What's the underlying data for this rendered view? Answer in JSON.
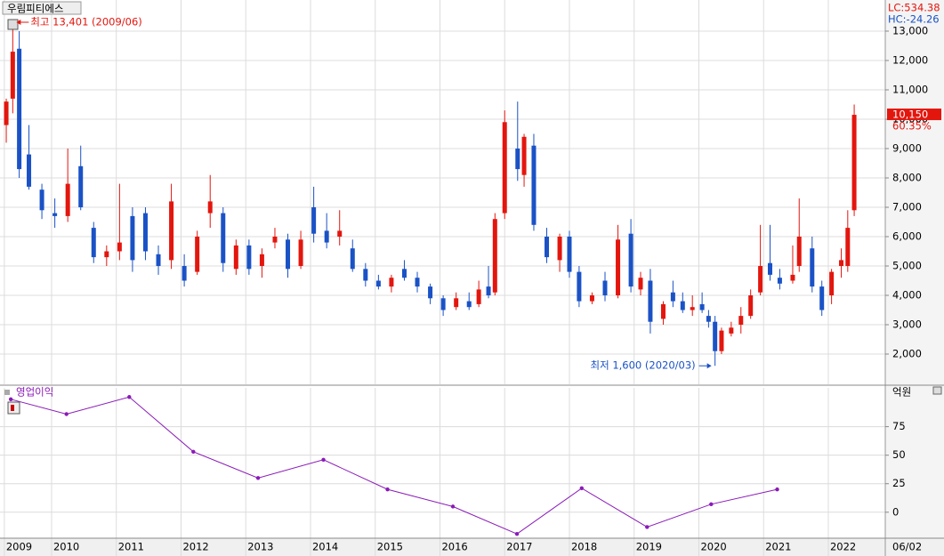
{
  "chart_data": [
    {
      "type": "candlestick",
      "title": "우림피티에스",
      "lc_label": "LC:534.38",
      "hc_label": "HC:-24.26",
      "annotations": [
        {
          "text": "최고 13,401 (2009/06)"
        },
        {
          "text": "최저 1,600 (2020/03)"
        }
      ],
      "current_price": {
        "value": 10150,
        "label": "10,150"
      },
      "change": {
        "value": 60.35,
        "label": "60.35%"
      },
      "up_color": "#e3160e",
      "down_color": "#1a52c6",
      "grid": true,
      "xlim": [
        2009.203,
        2022.88
      ],
      "ylim": [
        970,
        14060
      ],
      "yticks": [
        {
          "value": 2000,
          "label": "2,000"
        },
        {
          "value": 3000,
          "label": "3,000"
        },
        {
          "value": 4000,
          "label": "4,000"
        },
        {
          "value": 5000,
          "label": "5,000"
        },
        {
          "value": 6000,
          "label": "6,000"
        },
        {
          "value": 7000,
          "label": "7,000"
        },
        {
          "value": 8000,
          "label": "8,000"
        },
        {
          "value": 9000,
          "label": "9,000"
        },
        {
          "value": 10000,
          "label": "10,000"
        },
        {
          "value": 11000,
          "label": "11,000"
        },
        {
          "value": 12000,
          "label": "12,000"
        },
        {
          "value": 13000,
          "label": "13,000"
        }
      ],
      "x": [
        2009.3,
        2009.4,
        2009.5,
        2009.65,
        2009.85,
        2010.05,
        2010.25,
        2010.45,
        2010.65,
        2010.85,
        2011.05,
        2011.25,
        2011.45,
        2011.65,
        2011.85,
        2012.05,
        2012.25,
        2012.45,
        2012.65,
        2012.85,
        2013.05,
        2013.25,
        2013.45,
        2013.65,
        2013.85,
        2014.05,
        2014.25,
        2014.45,
        2014.65,
        2014.85,
        2015.05,
        2015.25,
        2015.45,
        2015.65,
        2015.85,
        2016.05,
        2016.25,
        2016.45,
        2016.6,
        2016.75,
        2016.85,
        2017.0,
        2017.2,
        2017.3,
        2017.45,
        2017.65,
        2017.85,
        2018.0,
        2018.15,
        2018.35,
        2018.55,
        2018.75,
        2018.95,
        2019.1,
        2019.25,
        2019.45,
        2019.6,
        2019.75,
        2019.9,
        2020.05,
        2020.15,
        2020.25,
        2020.35,
        2020.5,
        2020.65,
        2020.8,
        2020.95,
        2021.1,
        2021.25,
        2021.45,
        2021.55,
        2021.75,
        2021.9,
        2022.05,
        2022.2,
        2022.3,
        2022.4
      ],
      "open": [
        9800,
        10700,
        12400,
        8800,
        7600,
        6800,
        6700,
        8400,
        6300,
        5300,
        5500,
        6700,
        6800,
        5400,
        5200,
        5000,
        4800,
        6800,
        6800,
        4900,
        5700,
        5000,
        5800,
        5900,
        5000,
        7000,
        6200,
        6000,
        5600,
        4900,
        4500,
        4300,
        4900,
        4600,
        4300,
        3900,
        3600,
        3800,
        3700,
        4300,
        4100,
        6800,
        9000,
        8100,
        9100,
        6000,
        5200,
        6000,
        4800,
        3800,
        4500,
        4000,
        6100,
        4200,
        4500,
        3200,
        4100,
        3800,
        3500,
        3700,
        3300,
        3100,
        2100,
        2700,
        3000,
        3300,
        4100,
        5100,
        4600,
        4500,
        5000,
        5600,
        4300,
        4000,
        5000,
        5000,
        6900
      ],
      "high": [
        10700,
        13401,
        13000,
        9800,
        7800,
        7300,
        9000,
        9100,
        6500,
        5700,
        7800,
        7000,
        7000,
        5700,
        7800,
        5400,
        6200,
        8100,
        7000,
        5900,
        5900,
        5600,
        6300,
        6100,
        6200,
        7700,
        6800,
        6900,
        5900,
        5100,
        4700,
        4700,
        5200,
        4800,
        4400,
        4000,
        4100,
        4100,
        4500,
        5000,
        6800,
        10300,
        10600,
        9500,
        9500,
        6300,
        6100,
        6200,
        5000,
        4100,
        4800,
        6400,
        6600,
        4800,
        4900,
        3800,
        4500,
        4100,
        4000,
        4100,
        3500,
        3300,
        2900,
        3100,
        3600,
        4200,
        6400,
        6400,
        4900,
        5700,
        7300,
        6000,
        4500,
        4900,
        5600,
        6900,
        10500
      ],
      "low": [
        9200,
        10200,
        8000,
        7600,
        6600,
        6300,
        6500,
        6900,
        5100,
        5000,
        5200,
        4800,
        5200,
        4700,
        4900,
        4300,
        4700,
        6300,
        4800,
        4700,
        4700,
        4600,
        5600,
        4600,
        4900,
        5800,
        5600,
        5700,
        4800,
        4300,
        4200,
        4100,
        4500,
        4100,
        3700,
        3300,
        3500,
        3500,
        3600,
        3900,
        4000,
        6600,
        7900,
        7700,
        6200,
        5100,
        4800,
        4600,
        3600,
        3700,
        3800,
        3900,
        4100,
        4000,
        2700,
        3000,
        3600,
        3400,
        3300,
        3400,
        2900,
        1600,
        2000,
        2600,
        2700,
        3200,
        4000,
        4500,
        4200,
        4400,
        4800,
        4100,
        3300,
        3700,
        4600,
        4800,
        6700
      ],
      "close": [
        10600,
        12300,
        8300,
        7700,
        6900,
        6700,
        7800,
        7000,
        5300,
        5500,
        5800,
        5200,
        5500,
        5000,
        7200,
        4500,
        6000,
        7200,
        5100,
        5700,
        4900,
        5400,
        6000,
        4900,
        5900,
        6100,
        5800,
        6200,
        4900,
        4500,
        4300,
        4600,
        4600,
        4300,
        3900,
        3500,
        3900,
        3600,
        4200,
        4000,
        6600,
        9900,
        8300,
        9400,
        6400,
        5300,
        6000,
        4800,
        3800,
        4000,
        4000,
        5900,
        4300,
        4600,
        3100,
        3700,
        3800,
        3500,
        3600,
        3500,
        3100,
        2100,
        2800,
        2900,
        3300,
        4000,
        5000,
        4700,
        4400,
        4700,
        6000,
        4300,
        3500,
        4800,
        5200,
        6300,
        10150
      ]
    },
    {
      "type": "line",
      "title": "영업이익",
      "unit": "억원",
      "color": "#8a1ab8",
      "date_label": "06/02",
      "grid": true,
      "xlim": [
        2009.203,
        2022.88
      ],
      "ylim": [
        -22,
        109
      ],
      "yticks": [
        0,
        25,
        50,
        75
      ],
      "xticks": [
        {
          "value": 2009.27,
          "label": "2009"
        },
        2010,
        2011,
        2012,
        2013,
        2014,
        2015,
        2016,
        2017,
        2018,
        2019,
        2020,
        2021,
        2022
      ],
      "x": [
        2009.37,
        2010.23,
        2011.2,
        2012.19,
        2013.19,
        2014.2,
        2015.19,
        2016.2,
        2017.19,
        2018.19,
        2019.2,
        2020.19,
        2021.21
      ],
      "values": [
        99,
        86,
        101,
        53,
        30,
        46,
        20,
        5,
        -19,
        21,
        -13,
        7,
        20
      ]
    }
  ]
}
